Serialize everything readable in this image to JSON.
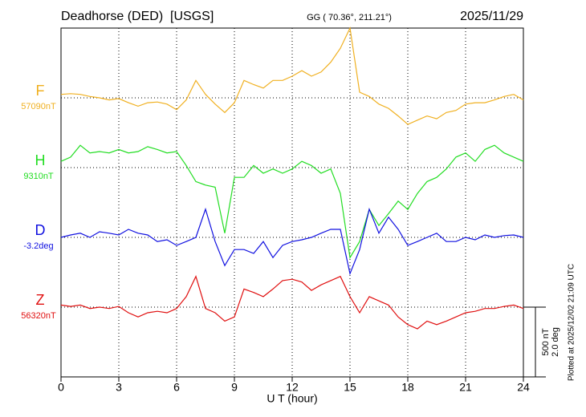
{
  "chart_data": {
    "type": "line",
    "title": "Deadhorse (DED)  [USGS]",
    "subtitle": "GG ( 70.36°, 211.21°)",
    "date": "2025/11/29",
    "plotted_note": "Plotted at 2025/12/02 21:09 UTC",
    "xlabel": "U T (hour)",
    "xlim": [
      0,
      24
    ],
    "xticks": [
      0,
      3,
      6,
      9,
      12,
      15,
      18,
      21,
      24
    ],
    "grid": true,
    "scale_bar": {
      "value": 500,
      "label": "500 nT"
    },
    "scale_bar2": {
      "value": 2.0,
      "label": "2.0 deg"
    },
    "x": [
      0,
      0.5,
      1,
      1.5,
      2,
      2.5,
      3,
      3.5,
      4,
      4.5,
      5,
      5.5,
      6,
      6.5,
      7,
      7.5,
      8,
      8.5,
      9,
      9.5,
      10,
      10.5,
      11,
      11.5,
      12,
      12.5,
      13,
      13.5,
      14,
      14.5,
      15,
      15.5,
      16,
      16.5,
      17,
      17.5,
      18,
      18.5,
      19,
      19.5,
      20,
      20.5,
      21,
      21.5,
      22,
      22.5,
      23,
      23.5,
      24
    ],
    "series": [
      {
        "name": "F",
        "baseline_label": "57090nT",
        "color": "#f0b020",
        "values": [
          25,
          30,
          25,
          10,
          0,
          -15,
          -5,
          -35,
          -60,
          -35,
          -30,
          -45,
          -85,
          -15,
          125,
          25,
          -45,
          -105,
          -35,
          125,
          95,
          70,
          125,
          125,
          155,
          195,
          155,
          185,
          255,
          355,
          500,
          40,
          10,
          -45,
          -75,
          -130,
          -190,
          -160,
          -130,
          -150,
          -105,
          -90,
          -45,
          -35,
          -35,
          -15,
          10,
          25,
          -15
        ]
      },
      {
        "name": "H",
        "baseline_label": "9310nT",
        "color": "#22dd22",
        "values": [
          45,
          75,
          160,
          105,
          115,
          105,
          130,
          105,
          115,
          150,
          130,
          105,
          115,
          15,
          -100,
          -125,
          -140,
          -470,
          -70,
          -70,
          15,
          -40,
          -10,
          -40,
          -10,
          45,
          15,
          -40,
          -10,
          -185,
          -645,
          -530,
          -300,
          -415,
          -330,
          -240,
          -300,
          -185,
          -100,
          -70,
          -10,
          75,
          105,
          45,
          130,
          160,
          105,
          75,
          45
        ]
      },
      {
        "name": "D",
        "baseline_label": "-3.2deg",
        "color": "#1010e0",
        "axis": "y2",
        "values": [
          0,
          0.07,
          0.12,
          0,
          0.16,
          0.12,
          0.07,
          0.23,
          0.12,
          0.07,
          -0.12,
          -0.07,
          -0.23,
          -0.12,
          0,
          0.81,
          -0.12,
          -0.81,
          -0.35,
          -0.35,
          -0.46,
          -0.12,
          -0.58,
          -0.23,
          -0.12,
          -0.07,
          0,
          0.12,
          0.23,
          0.23,
          -1.04,
          -0.35,
          0.81,
          0.12,
          0.58,
          0.23,
          -0.23,
          -0.12,
          0,
          0.12,
          -0.12,
          -0.12,
          0,
          -0.07,
          0.07,
          0,
          0.05,
          0.07,
          0
        ]
      },
      {
        "name": "Z",
        "baseline_label": "56320nT",
        "color": "#e01010",
        "values": [
          15,
          5,
          15,
          -10,
          0,
          -10,
          5,
          -40,
          -70,
          -40,
          -30,
          -40,
          -10,
          75,
          220,
          -10,
          -40,
          -100,
          -70,
          130,
          105,
          75,
          130,
          190,
          200,
          180,
          120,
          160,
          190,
          220,
          75,
          -40,
          75,
          45,
          15,
          -70,
          -125,
          -155,
          -100,
          -125,
          -100,
          -70,
          -40,
          -30,
          -10,
          -10,
          5,
          15,
          -10
        ]
      }
    ]
  }
}
